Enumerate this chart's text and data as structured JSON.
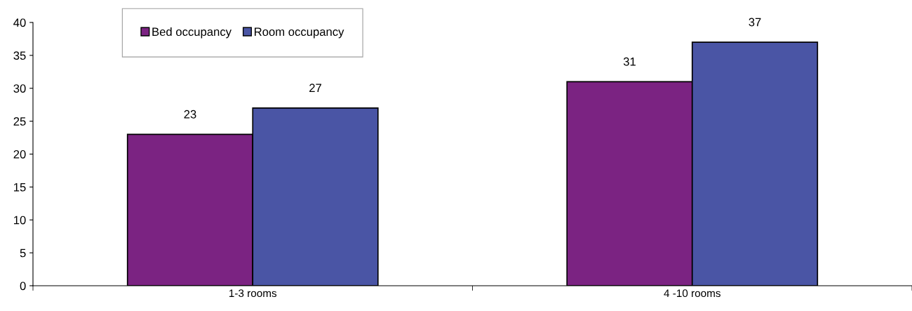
{
  "chart_data": {
    "type": "bar",
    "categories": [
      "1-3 rooms",
      "4 -10 rooms"
    ],
    "series": [
      {
        "name": "Bed occupancy",
        "color": "#7b2382",
        "values": [
          23,
          31
        ]
      },
      {
        "name": "Room occupancy",
        "color": "#4a55a5",
        "values": [
          27,
          37
        ]
      }
    ],
    "ylim": [
      0,
      40
    ],
    "yticks": [
      0,
      5,
      10,
      15,
      20,
      25,
      30,
      35,
      40
    ],
    "data_labels": true,
    "grid": false,
    "legend": "top left"
  }
}
